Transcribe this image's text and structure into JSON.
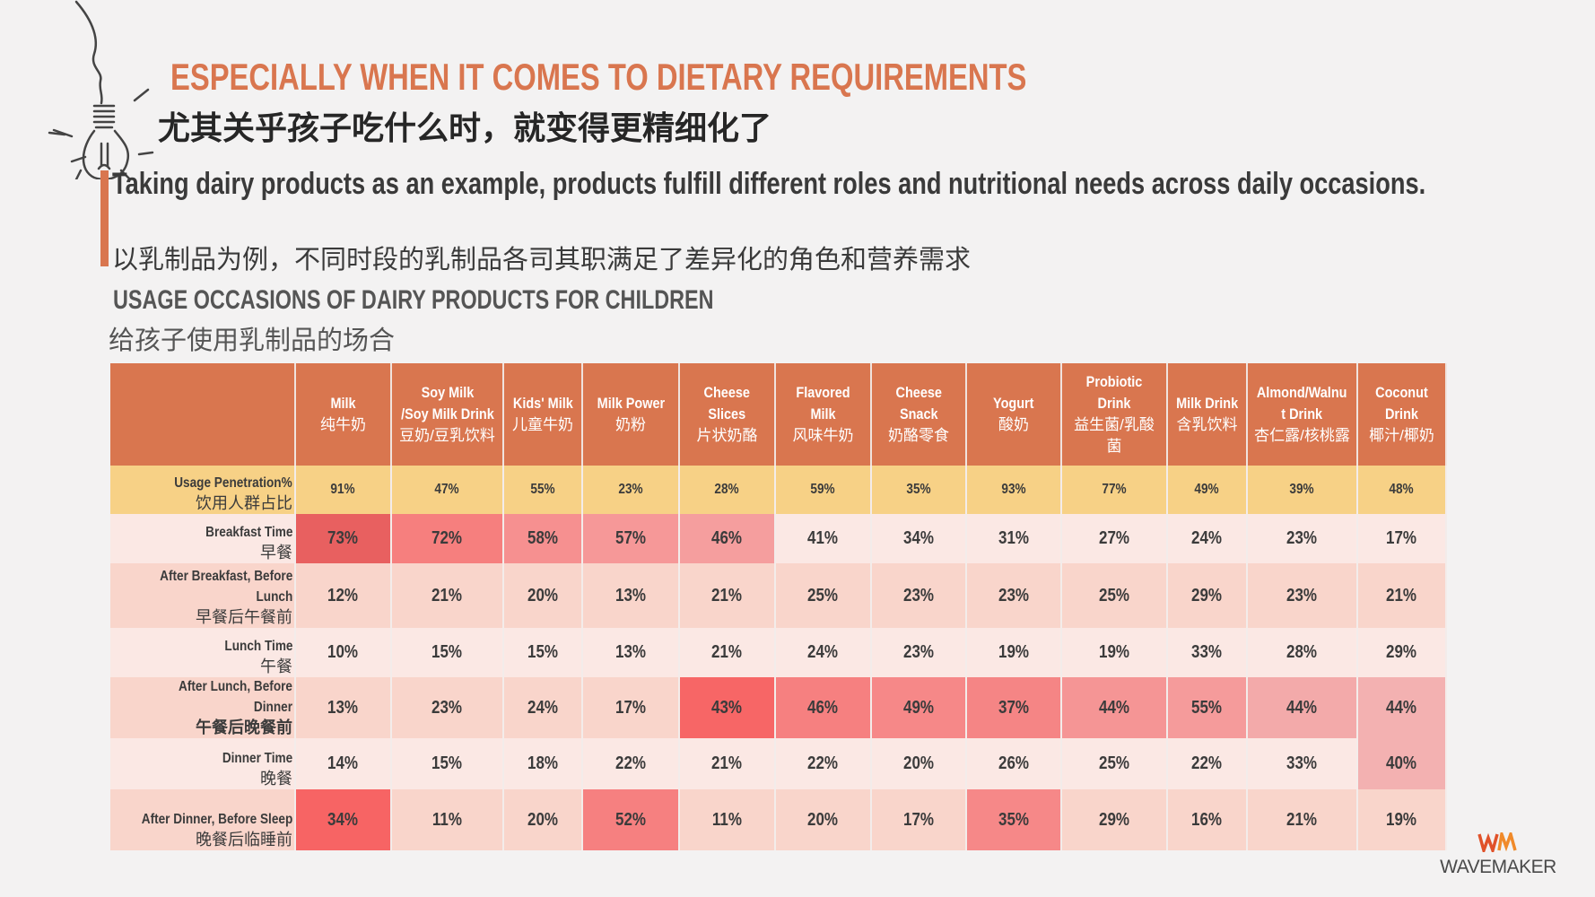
{
  "header": {
    "title_en": "ESPECIALLY WHEN IT COMES TO DIETARY REQUIREMENTS",
    "title_zh": "尤其关乎孩子吃什么时，就变得更精细化了",
    "body_en": "Taking dairy products as an example, products fulfill different roles and nutritional needs across daily occasions.",
    "body_zh": "以乳制品为例，不同时段的乳制品各司其职满足了差异化的角色和营养需求",
    "section_en": "USAGE OCCASIONS OF DAIRY PRODUCTS FOR CHILDREN",
    "section_zh": "给孩子使用乳制品的场合"
  },
  "colors": {
    "accent": "#d9764f",
    "penetration": "#f7d186",
    "row_light": "#fbe8e4",
    "row_dark": "#f9d5cb"
  },
  "table": {
    "columns": [
      {
        "en": "Milk",
        "zh": "纯牛奶"
      },
      {
        "en": "Soy Milk\n/Soy Milk Drink",
        "zh": "豆奶/豆乳饮料"
      },
      {
        "en": "Kids' Milk",
        "zh": "儿童牛奶"
      },
      {
        "en": "Milk Power",
        "zh": "奶粉"
      },
      {
        "en": "Cheese\nSlices",
        "zh": "片状奶酪"
      },
      {
        "en": "Flavored Milk",
        "zh": "风味牛奶"
      },
      {
        "en": "Cheese\nSnack",
        "zh": "奶酪零食"
      },
      {
        "en": "Yogurt",
        "zh": "酸奶"
      },
      {
        "en": "Probiotic Drink",
        "zh": "益生菌/乳酸\n菌"
      },
      {
        "en": "Milk Drink",
        "zh": "含乳饮料"
      },
      {
        "en": "Almond/Walnu\nt Drink",
        "zh": "杏仁露/核桃露"
      },
      {
        "en": "Coconut\nDrink",
        "zh": "椰汁/椰奶"
      }
    ],
    "rows": [
      {
        "en": "Usage Penetration%",
        "zh": "饮用人群占比",
        "type": "pen",
        "values": [
          "91%",
          "47%",
          "55%",
          "23%",
          "28%",
          "59%",
          "35%",
          "93%",
          "77%",
          "49%",
          "39%",
          "48%"
        ],
        "colors": []
      },
      {
        "en": "Breakfast Time",
        "zh": "早餐",
        "type": "light",
        "values": [
          "73%",
          "72%",
          "58%",
          "57%",
          "46%",
          "41%",
          "34%",
          "31%",
          "27%",
          "24%",
          "23%",
          "17%"
        ],
        "colors": [
          "#e86060",
          "#f67f7e",
          "#f69090",
          "#f69898",
          "#f59e9e"
        ]
      },
      {
        "en": "After Breakfast, Before\nLunch",
        "zh": "早餐后午餐前",
        "type": "dark",
        "values": [
          "12%",
          "21%",
          "20%",
          "13%",
          "21%",
          "25%",
          "23%",
          "23%",
          "25%",
          "29%",
          "23%",
          "21%"
        ],
        "colors": []
      },
      {
        "en": "Lunch Time",
        "zh": "午餐",
        "type": "light",
        "values": [
          "10%",
          "15%",
          "15%",
          "13%",
          "21%",
          "24%",
          "23%",
          "19%",
          "19%",
          "33%",
          "28%",
          "29%"
        ],
        "colors": []
      },
      {
        "en": "After Lunch, Before Dinner",
        "zh": "午餐后晚餐前",
        "type": "dark",
        "values": [
          "13%",
          "23%",
          "24%",
          "17%",
          "43%",
          "46%",
          "49%",
          "37%",
          "44%",
          "55%",
          "44%",
          "44%"
        ],
        "colors": [
          null,
          null,
          null,
          null,
          "#f76666",
          "#f68080",
          "#f68888",
          "#f58585",
          "#f59595",
          "#f59b9b",
          "#f3aaaa",
          "#f3b1b1"
        ]
      },
      {
        "en": "Dinner Time",
        "zh": "晚餐",
        "type": "light",
        "values": [
          "14%",
          "15%",
          "18%",
          "22%",
          "21%",
          "22%",
          "20%",
          "26%",
          "25%",
          "22%",
          "33%",
          "40%"
        ],
        "colors": [
          null,
          null,
          null,
          null,
          null,
          null,
          null,
          null,
          null,
          null,
          null,
          "#f3b1b1"
        ]
      },
      {
        "en": "After Dinner, Before Sleep",
        "zh": "晚餐后临睡前",
        "type": "dark",
        "values": [
          "34%",
          "11%",
          "20%",
          "52%",
          "11%",
          "20%",
          "17%",
          "35%",
          "29%",
          "16%",
          "21%",
          "19%"
        ],
        "colors": [
          "#f76464",
          null,
          null,
          "#f68080",
          null,
          null,
          null,
          "#f68888"
        ]
      }
    ]
  },
  "logo": {
    "mark": "WM",
    "text": "WAVEMAKER"
  }
}
